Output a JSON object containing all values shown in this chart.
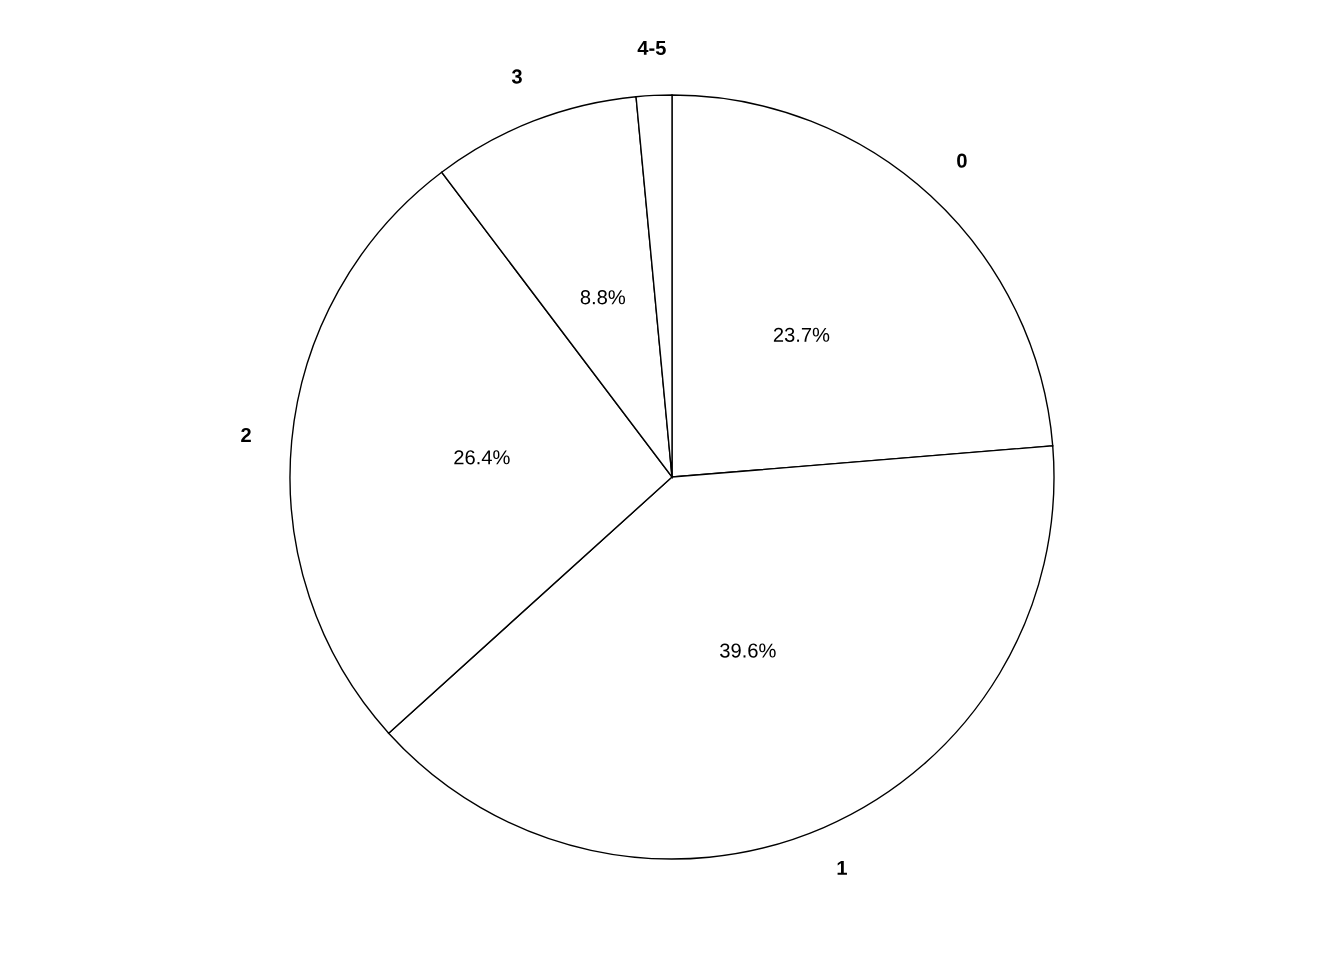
{
  "chart_data": {
    "type": "pie",
    "categories": [
      "0",
      "1",
      "2",
      "3",
      "4-5"
    ],
    "values": [
      23.7,
      39.6,
      26.4,
      8.8,
      1.5
    ],
    "colors": [
      "#ffffff",
      "#ffffff",
      "#ffffff",
      "#ffffff",
      "#ffffff"
    ],
    "value_labels": [
      "23.7%",
      "39.6%",
      "26.4%",
      "8.8%",
      null
    ]
  }
}
